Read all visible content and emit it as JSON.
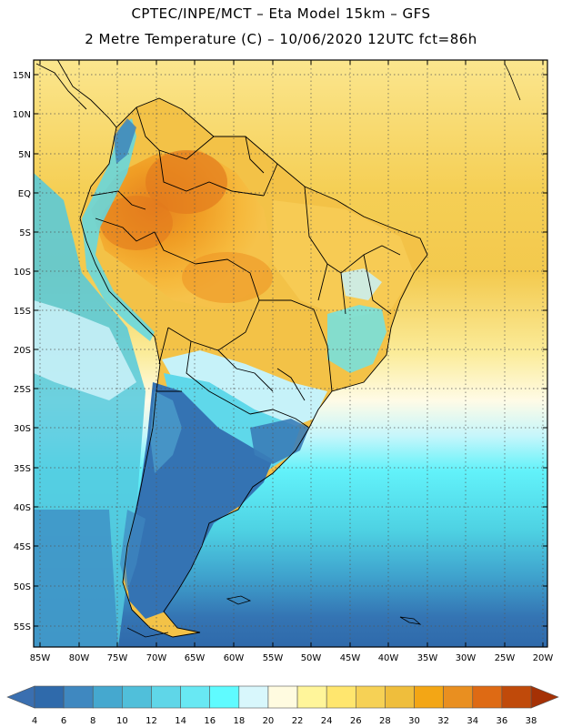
{
  "title": {
    "line1": "CPTEC/INPE/MCT –  Eta Model 15km – GFS",
    "line2": "2 Metre Temperature (C) – 10/06/2020 12UTC fct=86h"
  },
  "map": {
    "lat_labels": [
      "15N",
      "10N",
      "5N",
      "EQ",
      "5S",
      "10S",
      "15S",
      "20S",
      "25S",
      "30S",
      "35S",
      "40S",
      "45S",
      "50S",
      "55S"
    ],
    "lon_labels": [
      "85W",
      "80W",
      "75W",
      "70W",
      "65W",
      "60W",
      "55W",
      "50W",
      "45W",
      "40W",
      "35W",
      "30W",
      "25W",
      "20W"
    ]
  },
  "colorbar": {
    "labels": [
      "4",
      "6",
      "8",
      "10",
      "12",
      "14",
      "16",
      "18",
      "20",
      "22",
      "24",
      "26",
      "28",
      "30",
      "32",
      "34",
      "36",
      "38"
    ],
    "colors": [
      "#3a6fb0",
      "#2f6aab",
      "#3f88c0",
      "#45a8cf",
      "#50bfda",
      "#5fd6e8",
      "#68e8f3",
      "#5ffbff",
      "#d8f7fc",
      "#fffbe0",
      "#fff59a",
      "#ffe66e",
      "#f6d155",
      "#efbe3c",
      "#f3a615",
      "#e98f20",
      "#de6a14",
      "#c04a0a",
      "#a53105"
    ],
    "unit": "C"
  }
}
